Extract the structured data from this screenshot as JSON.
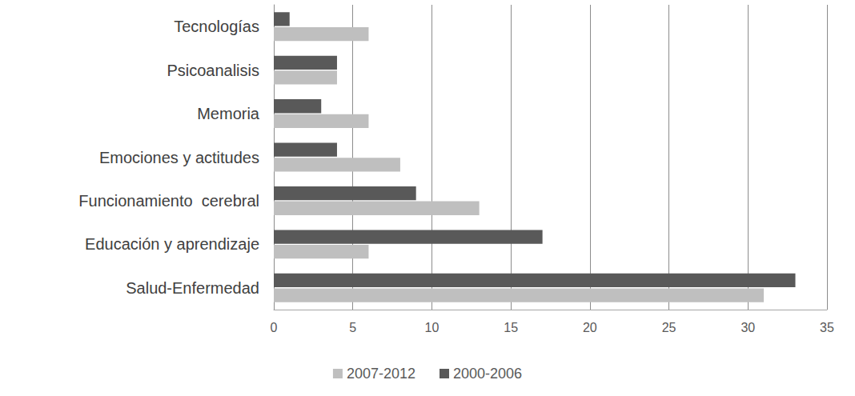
{
  "chart_data": {
    "type": "bar",
    "orientation": "horizontal",
    "categories": [
      "Salud-Enfermedad",
      "Educación y aprendizaje",
      "Funcionamiento  cerebral",
      "Emociones y actitudes",
      "Memoria",
      "Psicoanalisis",
      "Tecnologías"
    ],
    "series": [
      {
        "name": "2007-2012",
        "color": "#bfbfbf",
        "values": [
          31,
          6,
          13,
          8,
          6,
          4,
          6
        ]
      },
      {
        "name": "2000-2006",
        "color": "#595959",
        "values": [
          33,
          17,
          9,
          4,
          3,
          4,
          1
        ]
      }
    ],
    "xlim": [
      0,
      35
    ],
    "xticks": [
      0,
      5,
      10,
      15,
      20,
      25,
      30,
      35
    ],
    "grid": true,
    "legend": "bottom"
  }
}
